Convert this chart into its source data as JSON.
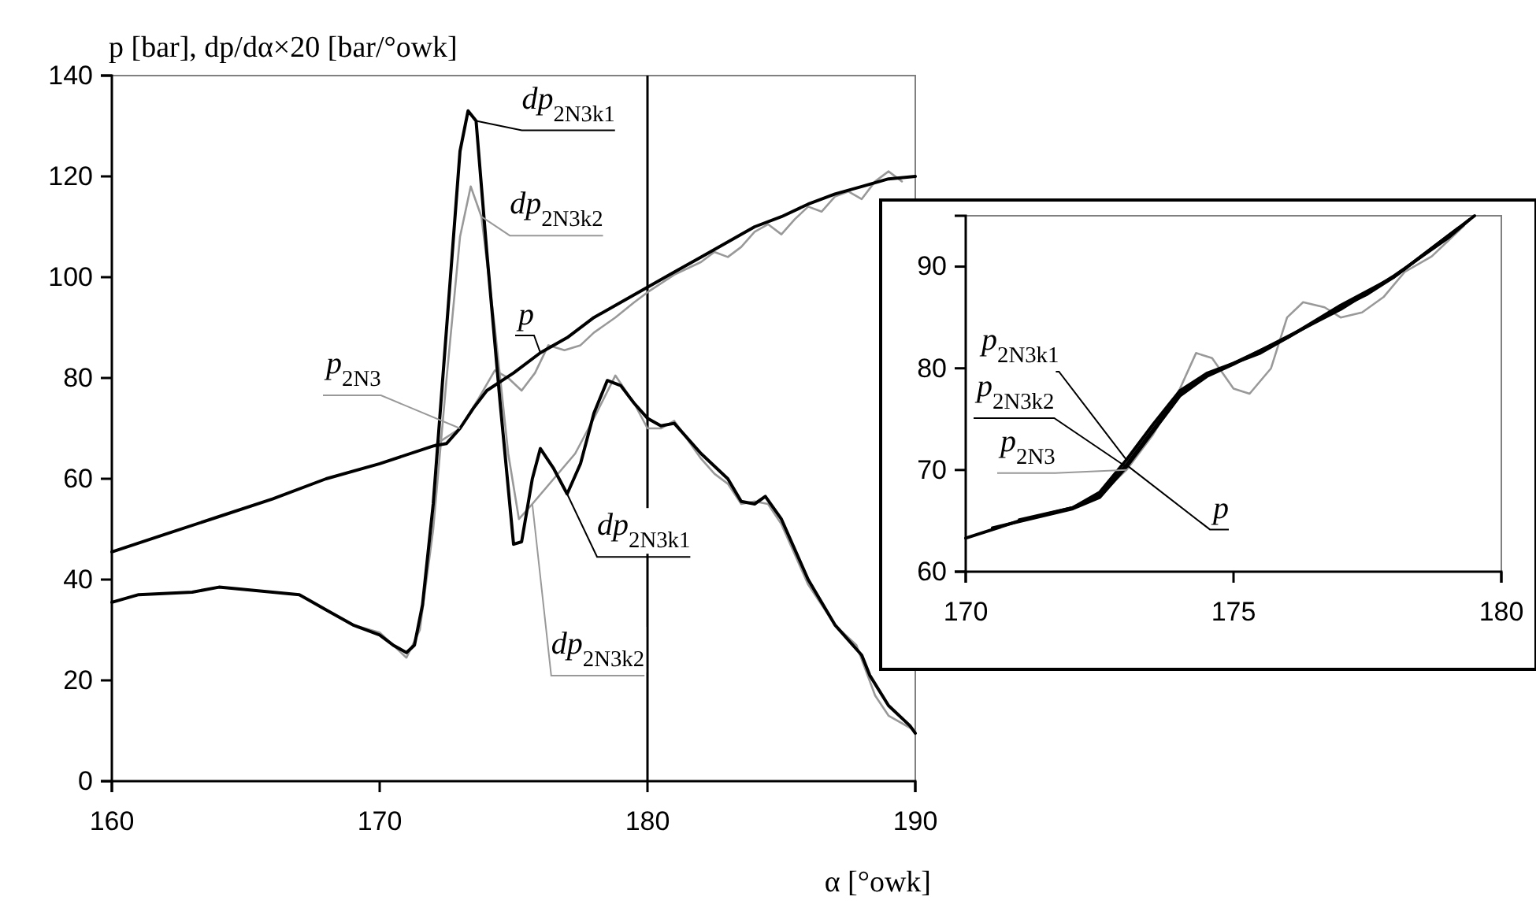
{
  "chart_data": [
    {
      "type": "line",
      "ylabel": "p [bar], dp/dα×20 [bar/°owk]",
      "xlabel": "α [°owk]",
      "xlim": [
        160,
        190
      ],
      "ylim": [
        0,
        140
      ],
      "xticks": [
        160,
        170,
        180,
        190
      ],
      "yticks": [
        0,
        20,
        40,
        60,
        80,
        100,
        120,
        140
      ],
      "grid": false,
      "legend": false,
      "ref_lines": [
        {
          "axis": "x",
          "value": 180,
          "color": "#000000"
        }
      ],
      "series": [
        {
          "name": "p",
          "color": "#000000",
          "x": [
            160,
            162,
            164,
            166,
            168,
            170,
            172,
            172.5,
            173,
            173.5,
            174,
            175,
            176,
            177,
            178,
            179,
            180,
            181,
            182,
            183,
            184,
            185,
            186,
            187,
            188,
            189,
            190
          ],
          "values": [
            45.5,
            49,
            52.5,
            56,
            60,
            63,
            66.5,
            67,
            70,
            74,
            77.5,
            81,
            85,
            88,
            92,
            95,
            98,
            101,
            104,
            107,
            110,
            112,
            114.5,
            116.5,
            118,
            119.5,
            120
          ]
        },
        {
          "name": "p$_{2N3}$",
          "color": "#999999",
          "x": [
            170,
            172,
            173,
            173.7,
            174.3,
            174.8,
            175.3,
            175.8,
            176.3,
            176.9,
            177.5,
            178,
            178.8,
            179.5,
            180,
            181,
            182,
            182.5,
            183,
            183.5,
            184,
            184.5,
            185,
            185.5,
            186,
            186.5,
            187,
            187.5,
            188,
            188.5,
            189,
            189.5
          ],
          "values": [
            63,
            66.5,
            70,
            76,
            81.5,
            80,
            77.5,
            81,
            86.5,
            85.5,
            86.5,
            89,
            92,
            95,
            97,
            100.5,
            103,
            105,
            104,
            106,
            109,
            110.5,
            108.5,
            111.5,
            114,
            113,
            116,
            117,
            115.5,
            119,
            121,
            119
          ]
        },
        {
          "name": "dp$_{2N3k1}$",
          "color": "#000000",
          "x": [
            160,
            161,
            163,
            164,
            166,
            167,
            168,
            169,
            170,
            170.5,
            171,
            171.3,
            171.6,
            172,
            172.5,
            173,
            173.3,
            173.6,
            174,
            174.5,
            175,
            175.3,
            175.7,
            176,
            176.5,
            177,
            177.5,
            178,
            178.5,
            179,
            179.5,
            180,
            180.5,
            181,
            182,
            183,
            183.5,
            184,
            184.4,
            185,
            186,
            187,
            188,
            188.3,
            189,
            189.8,
            190
          ],
          "values": [
            35.5,
            37,
            37.5,
            38.5,
            37.5,
            37,
            34,
            31,
            29,
            27,
            25.5,
            27,
            35,
            55,
            90,
            125,
            133,
            131,
            105,
            75,
            47,
            47.5,
            60,
            66,
            62,
            57,
            63,
            73,
            79.5,
            78.5,
            75,
            72,
            70.5,
            71,
            65,
            60,
            55.5,
            55,
            56.5,
            52,
            40,
            31,
            25,
            21,
            15,
            11,
            9.5
          ]
        },
        {
          "name": "dp$_{2N3k2}$",
          "color": "#999999",
          "x": [
            160,
            161,
            163,
            164,
            166,
            167,
            168,
            169,
            170,
            170.5,
            171,
            171.5,
            172,
            172.5,
            173,
            173.4,
            173.8,
            174.3,
            174.8,
            175.2,
            175.7,
            176.5,
            177.3,
            178,
            178.8,
            179.5,
            180,
            180.5,
            181,
            182,
            182.5,
            183,
            183.5,
            184,
            184.5,
            185,
            186,
            187,
            187.8,
            188.5,
            189,
            190
          ],
          "values": [
            35.5,
            37,
            37.5,
            38.5,
            37.5,
            37,
            34,
            31,
            29.5,
            27,
            24.5,
            30,
            50,
            80,
            108,
            118,
            112,
            90,
            65,
            52,
            55,
            60,
            65,
            72,
            80.5,
            75,
            70,
            70,
            71.5,
            64,
            61,
            59,
            55,
            55.5,
            55,
            51,
            39,
            31,
            27,
            17,
            13,
            10
          ]
        }
      ]
    },
    {
      "type": "line",
      "xlim": [
        170,
        180
      ],
      "ylim": [
        60,
        95
      ],
      "xticks": [
        170,
        175,
        180
      ],
      "yticks": [
        60,
        70,
        80,
        90
      ],
      "grid": false,
      "legend": false,
      "series": [
        {
          "name": "p",
          "color": "#000000",
          "x": [
            170,
            171,
            172,
            172.5,
            173,
            173.5,
            174,
            174.5,
            175,
            175.5,
            176,
            176.5,
            177,
            177.5,
            178,
            178.5,
            179,
            179.5
          ],
          "values": [
            63.3,
            65,
            66.3,
            67.5,
            70.5,
            74,
            77.5,
            79.3,
            80.5,
            81.5,
            83,
            84.5,
            86,
            87.3,
            89,
            91,
            93,
            95
          ]
        },
        {
          "name": "p$_{2N3}$",
          "color": "#999999",
          "x": [
            172,
            172.5,
            173,
            173.5,
            174,
            174.3,
            174.6,
            175,
            175.3,
            175.7,
            176,
            176.3,
            176.7,
            177,
            177.4,
            177.8,
            178.2,
            178.7,
            179,
            179.3
          ],
          "values": [
            66.3,
            67.5,
            70,
            73.5,
            78,
            81.5,
            81,
            78,
            77.5,
            80,
            85,
            86.5,
            86,
            85,
            85.5,
            87,
            89.5,
            91,
            92.5,
            94
          ]
        },
        {
          "name": "p$_{2N3k1}$",
          "color": "#000000",
          "x": [
            171,
            172,
            172.5,
            173,
            173.5,
            174,
            174.5,
            175,
            176,
            177,
            178,
            179,
            179.2
          ],
          "values": [
            65.1,
            66.3,
            67.8,
            71,
            74.5,
            77.8,
            79.5,
            80.5,
            83,
            86.2,
            89,
            93,
            93.8
          ]
        },
        {
          "name": "p$_{2N3k2}$",
          "color": "#000000",
          "x": [
            170.5,
            172,
            172.5,
            173,
            173.5,
            174,
            174.5,
            175,
            176,
            177,
            178,
            179,
            179.4
          ],
          "values": [
            64.3,
            66.2,
            67.3,
            70.3,
            73.8,
            77.3,
            79.2,
            80.4,
            83.1,
            85.8,
            89.1,
            92.8,
            94.6
          ]
        }
      ]
    }
  ]
}
